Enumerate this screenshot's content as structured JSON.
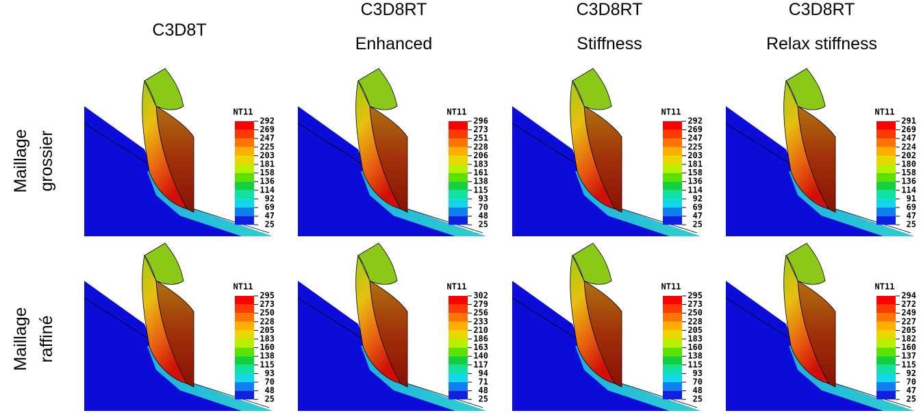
{
  "column_headers": [
    [
      "C3D8T"
    ],
    [
      "C3D8RT",
      "Enhanced"
    ],
    [
      "C3D8RT",
      "Stiffness"
    ],
    [
      "C3D8RT",
      "Relax stiffness"
    ]
  ],
  "row_labels": [
    [
      "Maillage",
      "grossier"
    ],
    [
      "Maillage",
      "raffiné"
    ]
  ],
  "panels": [
    {
      "legend_title": "NT11",
      "legend_values": [
        292,
        269,
        247,
        225,
        203,
        181,
        158,
        136,
        114,
        92,
        69,
        47,
        25
      ]
    },
    {
      "legend_title": "NT11",
      "legend_values": [
        296,
        273,
        251,
        228,
        206,
        183,
        161,
        138,
        115,
        93,
        70,
        48,
        25
      ]
    },
    {
      "legend_title": "NT11",
      "legend_values": [
        292,
        269,
        247,
        225,
        203,
        181,
        158,
        136,
        114,
        92,
        69,
        47,
        25
      ]
    },
    {
      "legend_title": "NT11",
      "legend_values": [
        291,
        269,
        247,
        224,
        202,
        180,
        158,
        136,
        114,
        91,
        69,
        47,
        25
      ]
    },
    {
      "legend_title": "NT11",
      "legend_values": [
        295,
        273,
        250,
        228,
        205,
        183,
        160,
        138,
        115,
        93,
        70,
        48,
        25
      ]
    },
    {
      "legend_title": "NT11",
      "legend_values": [
        302,
        279,
        256,
        233,
        210,
        186,
        163,
        140,
        117,
        94,
        71,
        48,
        25
      ]
    },
    {
      "legend_title": "NT11",
      "legend_values": [
        295,
        273,
        250,
        228,
        205,
        183,
        160,
        138,
        115,
        93,
        70,
        48,
        25
      ]
    },
    {
      "legend_title": "NT11",
      "legend_values": [
        294,
        272,
        249,
        227,
        205,
        182,
        160,
        137,
        115,
        92,
        70,
        47,
        25
      ]
    }
  ]
}
